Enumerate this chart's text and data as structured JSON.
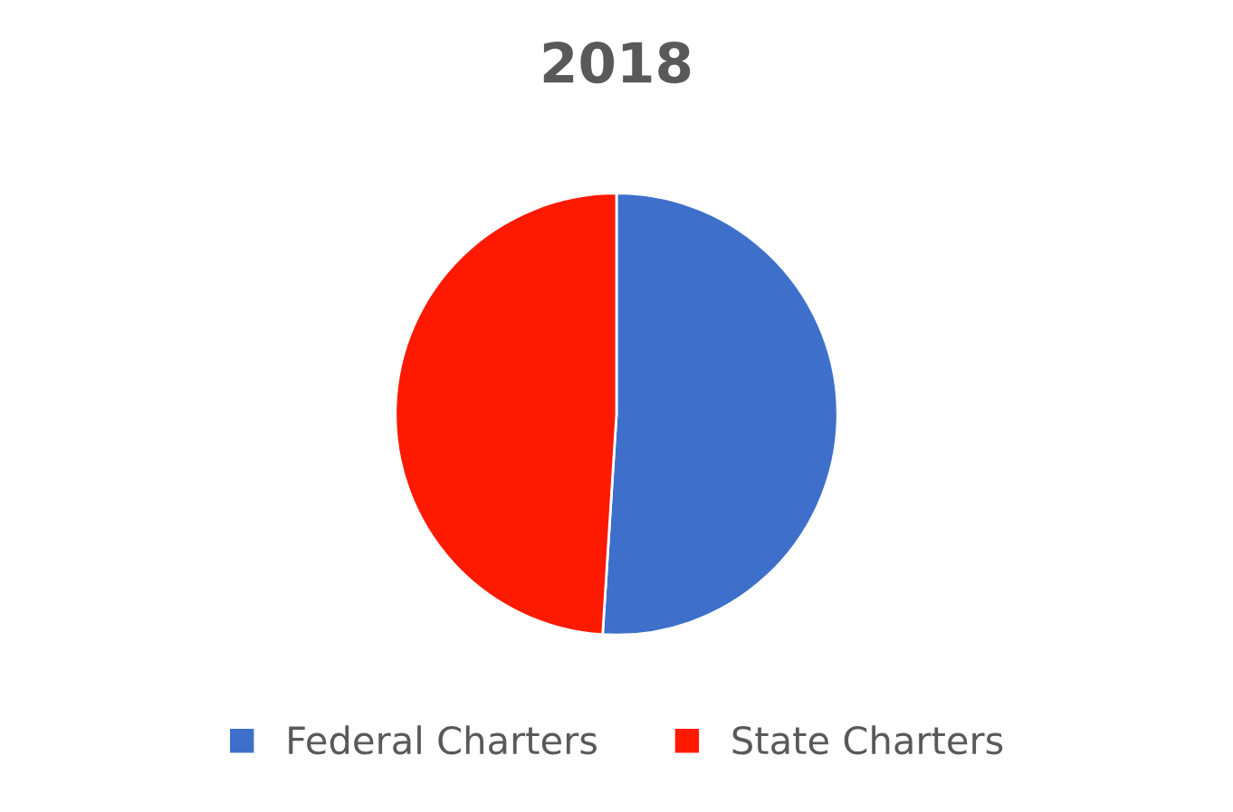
{
  "chart_data": {
    "type": "pie",
    "title": "2018",
    "categories": [
      "Federal Charters",
      "State Charters"
    ],
    "values": [
      51,
      49
    ],
    "colors": [
      "#3e70cb",
      "#fe1a00"
    ],
    "legend": "bottom"
  }
}
